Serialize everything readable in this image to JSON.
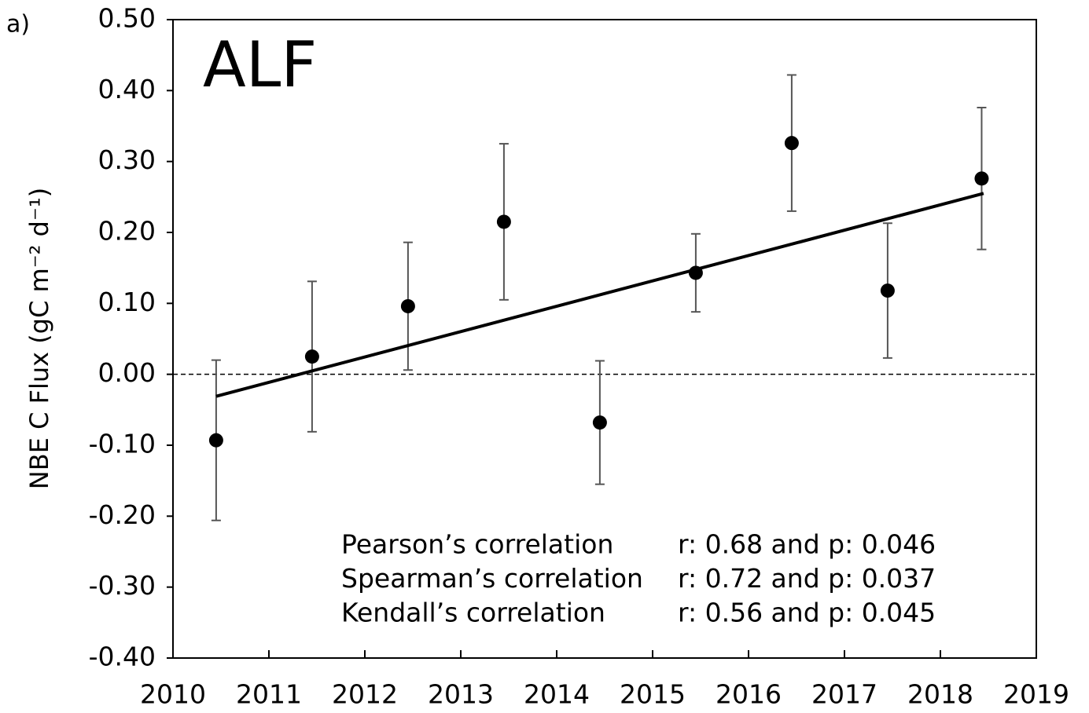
{
  "chart_data": {
    "type": "scatter",
    "panel_label": "a)",
    "title": "ALF",
    "y_label": "NBE C Flux (gC m⁻² d⁻¹)",
    "xlim": [
      2010,
      2019
    ],
    "ylim": [
      -0.4,
      0.5
    ],
    "xticks": [
      2010,
      2011,
      2012,
      2013,
      2014,
      2015,
      2016,
      2017,
      2018,
      2019
    ],
    "yticks": [
      {
        "value": 0.5,
        "label": "0.50"
      },
      {
        "value": 0.4,
        "label": "0.40"
      },
      {
        "value": 0.3,
        "label": "0.30"
      },
      {
        "value": 0.2,
        "label": "0.20"
      },
      {
        "value": 0.1,
        "label": "0.10"
      },
      {
        "value": 0,
        "label": "0.00"
      },
      {
        "value": -0.1,
        "label": "-0.10"
      },
      {
        "value": -0.2,
        "label": "-0.20"
      },
      {
        "value": -0.3,
        "label": "-0.30"
      },
      {
        "value": -0.4,
        "label": "-0.40"
      }
    ],
    "reference_line": {
      "y": 0,
      "style": "dashed"
    },
    "series": [
      {
        "color": "#000000",
        "errorbar_color": "#555555",
        "x": [
          2010.45,
          2011.45,
          2012.45,
          2013.45,
          2014.45,
          2015.45,
          2016.45,
          2017.45,
          2018.43
        ],
        "values": [
          -0.093,
          0.025,
          0.096,
          0.215,
          -0.068,
          0.143,
          0.326,
          0.118,
          0.276
        ],
        "errors": [
          0.113,
          0.106,
          0.09,
          0.11,
          0.087,
          0.055,
          0.096,
          0.095,
          0.1
        ]
      },
      {
        "type": "line",
        "color": "#000000",
        "x": [
          2010.45,
          2018.45
        ],
        "values": [
          -0.031,
          0.255
        ]
      }
    ],
    "annotations": [
      {
        "text": "Pearson’s correlation",
        "stats": "r: 0.68 and p: 0.046"
      },
      {
        "text": "Spearman’s correlation",
        "stats": "r: 0.72 and p: 0.037"
      },
      {
        "text": "Kendall’s correlation",
        "stats": "r: 0.56 and p: 0.045"
      }
    ]
  }
}
